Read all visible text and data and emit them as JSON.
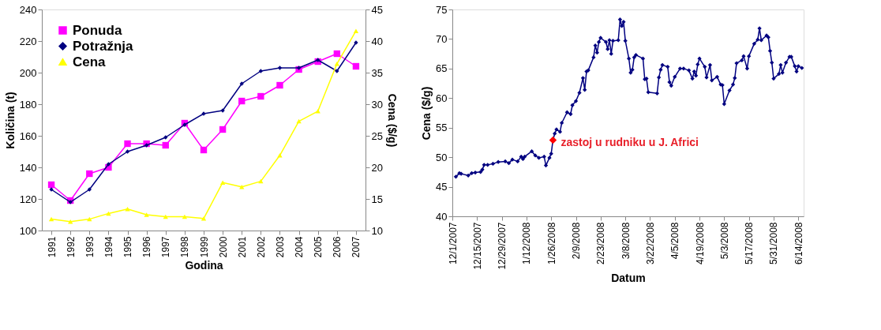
{
  "chart_data": [
    {
      "type": "line",
      "xlabel": "Godina",
      "ylabel": "Količina (t)",
      "y2label": "Cena ($/g)",
      "categories": [
        "1991",
        "1992",
        "1993",
        "1994",
        "1995",
        "1996",
        "1997",
        "1998",
        "1999",
        "2000",
        "2001",
        "2002",
        "2003",
        "2004",
        "2005",
        "2006",
        "2007"
      ],
      "ylim": [
        100,
        240
      ],
      "yticks": [
        100,
        120,
        140,
        160,
        180,
        200,
        220,
        240
      ],
      "y2lim": [
        10,
        45
      ],
      "y2ticks": [
        10,
        15,
        20,
        25,
        30,
        35,
        40,
        45
      ],
      "grid": false,
      "legend": "top left",
      "series": [
        {
          "name": "Ponuda",
          "color": "#ff00ff",
          "marker": "square",
          "values": [
            129,
            119,
            136,
            140,
            155,
            155,
            154,
            168,
            151,
            164,
            182,
            185,
            192,
            202,
            207,
            212,
            204
          ]
        },
        {
          "name": "Potražnja",
          "color": "#000080",
          "marker": "diamond",
          "values": [
            126,
            118,
            126,
            142,
            150,
            154,
            159,
            167,
            174,
            176,
            193,
            201,
            203,
            203,
            208,
            201,
            219
          ]
        },
        {
          "name": "Cena",
          "color": "#ffff00",
          "marker": "triangle",
          "axis": "y2",
          "values": [
            11.8,
            11.4,
            11.8,
            12.7,
            13.4,
            12.5,
            12.2,
            12.2,
            11.9,
            17.6,
            16.9,
            17.8,
            21.9,
            27.3,
            28.9,
            36.4,
            41.6
          ]
        }
      ]
    },
    {
      "type": "line",
      "xlabel": "Datum",
      "ylabel": "Cena ($/g)",
      "xlim": [
        "2007-12-01",
        "2008-06-17"
      ],
      "xticks": [
        {
          "value": "2007-12-01",
          "label": "12/1/2007"
        },
        {
          "value": "2007-12-15",
          "label": "12/15/2007"
        },
        {
          "value": "2007-12-29",
          "label": "12/29/2007"
        },
        {
          "value": "2008-01-12",
          "label": "1/12/2008"
        },
        {
          "value": "2008-01-26",
          "label": "1/26/2008"
        },
        {
          "value": "2008-02-09",
          "label": "2/9/2008"
        },
        {
          "value": "2008-02-23",
          "label": "2/23/2008"
        },
        {
          "value": "2008-03-08",
          "label": "3/8/2008"
        },
        {
          "value": "2008-03-22",
          "label": "3/22/2008"
        },
        {
          "value": "2008-04-05",
          "label": "4/5/2008"
        },
        {
          "value": "2008-04-19",
          "label": "4/19/2008"
        },
        {
          "value": "2008-05-03",
          "label": "5/3/2008"
        },
        {
          "value": "2008-05-17",
          "label": "5/17/2008"
        },
        {
          "value": "2008-05-31",
          "label": "5/31/2008"
        },
        {
          "value": "2008-06-14",
          "label": "6/14/2008"
        }
      ],
      "ylim": [
        40,
        75
      ],
      "yticks": [
        40,
        45,
        50,
        55,
        60,
        65,
        70,
        75
      ],
      "grid": false,
      "legend": false,
      "marker": "diamond",
      "annotations": [
        {
          "text": "zastoj u rudniku u J. Africi",
          "x": "2008-01-27",
          "y": 52.9
        }
      ],
      "series": [
        {
          "color": "#000080",
          "x": [
            "2007-12-03",
            "2007-12-05",
            "2007-12-06",
            "2007-12-10",
            "2007-12-12",
            "2007-12-14",
            "2007-12-17",
            "2007-12-18",
            "2007-12-19",
            "2007-12-21",
            "2007-12-24",
            "2007-12-27",
            "2007-12-31",
            "2008-01-02",
            "2008-01-04",
            "2008-01-07",
            "2008-01-09",
            "2008-01-10",
            "2008-01-11",
            "2008-01-15",
            "2008-01-17",
            "2008-01-19",
            "2008-01-22",
            "2008-01-23",
            "2008-01-25",
            "2008-01-26",
            "2008-01-27",
            "2008-01-28",
            "2008-01-29",
            "2008-01-31",
            "2008-02-01",
            "2008-02-04",
            "2008-02-06",
            "2008-02-07",
            "2008-02-09",
            "2008-02-11",
            "2008-02-13",
            "2008-02-14",
            "2008-02-15",
            "2008-02-16",
            "2008-02-19",
            "2008-02-20",
            "2008-02-21",
            "2008-02-22",
            "2008-02-23",
            "2008-02-26",
            "2008-02-27",
            "2008-02-28",
            "2008-02-29",
            "2008-03-01",
            "2008-03-04",
            "2008-03-05",
            "2008-03-06",
            "2008-03-07",
            "2008-03-08",
            "2008-03-10",
            "2008-03-11",
            "2008-03-12",
            "2008-03-13",
            "2008-03-14",
            "2008-03-18",
            "2008-03-19",
            "2008-03-20",
            "2008-03-21",
            "2008-03-26",
            "2008-03-27",
            "2008-03-28",
            "2008-03-29",
            "2008-04-01",
            "2008-04-02",
            "2008-04-03",
            "2008-04-05",
            "2008-04-08",
            "2008-04-10",
            "2008-04-13",
            "2008-04-15",
            "2008-04-16",
            "2008-04-17",
            "2008-04-18",
            "2008-04-19",
            "2008-04-22",
            "2008-04-23",
            "2008-04-25",
            "2008-04-26",
            "2008-04-29",
            "2008-05-01",
            "2008-05-02",
            "2008-05-03",
            "2008-05-06",
            "2008-05-08",
            "2008-05-09",
            "2008-05-10",
            "2008-05-13",
            "2008-05-14",
            "2008-05-16",
            "2008-05-17",
            "2008-05-20",
            "2008-05-22",
            "2008-05-23",
            "2008-05-24",
            "2008-05-27",
            "2008-05-28",
            "2008-05-29",
            "2008-05-30",
            "2008-05-31",
            "2008-06-03",
            "2008-06-04",
            "2008-06-05",
            "2008-06-07",
            "2008-06-09",
            "2008-06-10",
            "2008-06-12",
            "2008-06-13",
            "2008-06-14",
            "2008-06-16"
          ],
          "values": [
            46.7,
            47.3,
            47.2,
            46.9,
            47.3,
            47.4,
            47.5,
            47.9,
            48.7,
            48.7,
            48.9,
            49.2,
            49.3,
            49.0,
            49.6,
            49.3,
            50.1,
            49.7,
            50.1,
            51.0,
            50.3,
            49.9,
            50.1,
            48.6,
            49.9,
            50.6,
            52.9,
            54.0,
            54.7,
            54.3,
            55.8,
            57.6,
            57.3,
            58.8,
            59.5,
            60.9,
            63.4,
            61.4,
            64.5,
            64.7,
            66.9,
            68.9,
            67.7,
            69.5,
            70.2,
            69.5,
            68.3,
            69.8,
            67.5,
            69.7,
            69.8,
            73.3,
            72.2,
            72.9,
            69.7,
            66.7,
            64.3,
            64.8,
            66.9,
            67.3,
            66.7,
            63.2,
            63.3,
            61.0,
            60.8,
            63.5,
            64.8,
            65.6,
            65.3,
            62.7,
            62.1,
            63.6,
            65.0,
            65.0,
            64.7,
            63.3,
            64.5,
            63.8,
            65.7,
            66.7,
            65.3,
            63.5,
            65.6,
            63.0,
            63.6,
            62.3,
            62.2,
            59.0,
            61.3,
            62.3,
            63.4,
            65.9,
            66.4,
            67.1,
            65.0,
            67.1,
            69.2,
            69.9,
            71.8,
            69.8,
            70.6,
            70.3,
            68.0,
            66.0,
            63.3,
            64.1,
            65.6,
            64.3,
            66.0,
            67.0,
            67.0,
            65.4,
            64.5,
            65.4,
            65.1
          ]
        },
        {
          "type": "scatter",
          "color": "#ff0000",
          "x": [
            "2008-01-27"
          ],
          "values": [
            52.9
          ]
        }
      ]
    }
  ]
}
